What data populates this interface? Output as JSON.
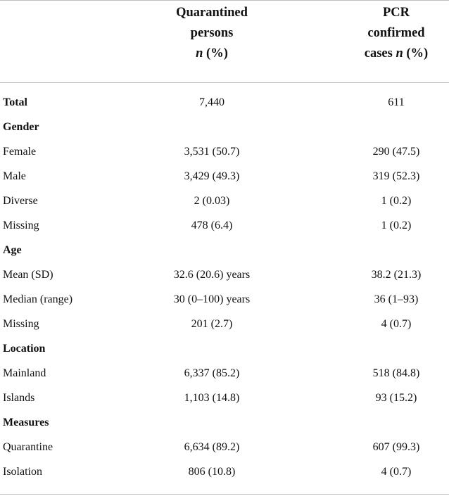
{
  "header": {
    "col1": {
      "line1": "Quarantined",
      "line2": "persons",
      "line3_italic": "n",
      "line3_rest": " (%)"
    },
    "col2": {
      "line1": "PCR",
      "line2": "confirmed",
      "line3_plain": "cases ",
      "line3_italic": "n",
      "line3_rest": " (%)"
    }
  },
  "rows": [
    {
      "label": "Total",
      "bold": true,
      "quarantined": "7,440",
      "pcr": "611"
    },
    {
      "label": "Gender",
      "bold": true,
      "quarantined": "",
      "pcr": ""
    },
    {
      "label": "Female",
      "bold": false,
      "quarantined": "3,531 (50.7)",
      "pcr": "290 (47.5)"
    },
    {
      "label": "Male",
      "bold": false,
      "quarantined": "3,429 (49.3)",
      "pcr": "319 (52.3)"
    },
    {
      "label": "Diverse",
      "bold": false,
      "quarantined": "2 (0.03)",
      "pcr": "1 (0.2)"
    },
    {
      "label": "Missing",
      "bold": false,
      "quarantined": "478 (6.4)",
      "pcr": "1 (0.2)"
    },
    {
      "label": "Age",
      "bold": true,
      "quarantined": "",
      "pcr": ""
    },
    {
      "label": "Mean (SD)",
      "bold": false,
      "quarantined": "32.6 (20.6) years",
      "pcr": "38.2 (21.3)"
    },
    {
      "label": "Median (range)",
      "bold": false,
      "quarantined": "30 (0–100) years",
      "pcr": "36 (1–93)"
    },
    {
      "label": "Missing",
      "bold": false,
      "quarantined": "201 (2.7)",
      "pcr": "4 (0.7)"
    },
    {
      "label": "Location",
      "bold": true,
      "quarantined": "",
      "pcr": ""
    },
    {
      "label": "Mainland",
      "bold": false,
      "quarantined": "6,337 (85.2)",
      "pcr": "518 (84.8)"
    },
    {
      "label": "Islands",
      "bold": false,
      "quarantined": "1,103 (14.8)",
      "pcr": "93 (15.2)"
    },
    {
      "label": "Measures",
      "bold": true,
      "quarantined": "",
      "pcr": ""
    },
    {
      "label": "Quarantine",
      "bold": false,
      "quarantined": "6,634 (89.2)",
      "pcr": "607 (99.3)"
    },
    {
      "label": "Isolation",
      "bold": false,
      "quarantined": "806 (10.8)",
      "pcr": "4 (0.7)"
    }
  ]
}
